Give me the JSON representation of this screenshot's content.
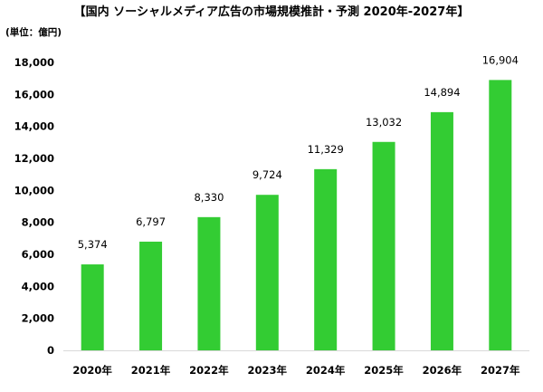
{
  "chart_data": {
    "type": "bar",
    "title": "【国内 ソーシャルメディア広告の市場規模推計・予測 2020年-2027年】",
    "unit_label": "(単位：億円)",
    "categories": [
      "2020年",
      "2021年",
      "2022年",
      "2023年",
      "2024年",
      "2025年",
      "2026年",
      "2027年"
    ],
    "values": [
      5374,
      6797,
      8330,
      9724,
      11329,
      13032,
      14894,
      16904
    ],
    "value_labels": [
      "5,374",
      "6,797",
      "8,330",
      "9,724",
      "11,329",
      "13,032",
      "14,894",
      "16,904"
    ],
    "ylim": [
      0,
      18000
    ],
    "yticks": [
      0,
      2000,
      4000,
      6000,
      8000,
      10000,
      12000,
      14000,
      16000,
      18000
    ],
    "ytick_labels": [
      "0",
      "2,000",
      "4,000",
      "6,000",
      "8,000",
      "10,000",
      "12,000",
      "14,000",
      "16,000",
      "18,000"
    ],
    "bar_color": "#33CC33",
    "grid": false,
    "xlabel": "",
    "ylabel": ""
  }
}
